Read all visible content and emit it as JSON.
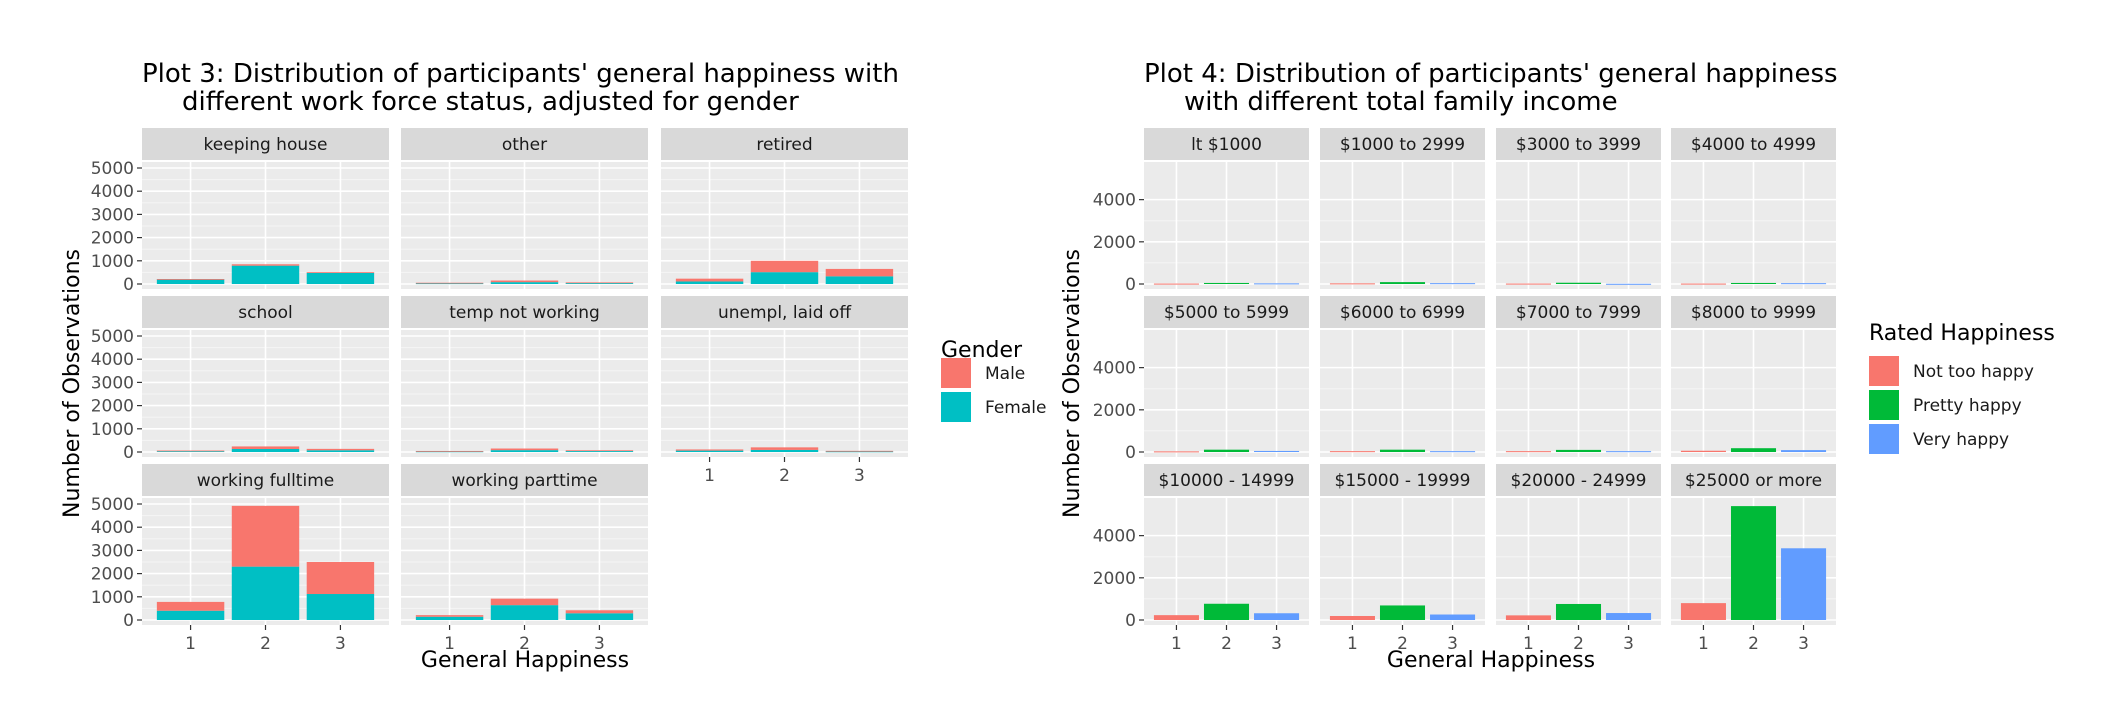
{
  "chart_data": [
    {
      "type": "bar",
      "stacked": true,
      "title_lines": [
        "Plot 3: Distribution of participants' general happiness with",
        "different work force status, adjusted for gender"
      ],
      "xlabel": "General Happiness",
      "ylabel": "Number of Observations",
      "categories": [
        "1",
        "2",
        "3"
      ],
      "ylim": [
        0,
        5000
      ],
      "yticks": [
        "0",
        "1000",
        "2000",
        "3000",
        "4000",
        "5000"
      ],
      "grid": true,
      "legend": {
        "title": "Gender",
        "placement": "right",
        "items": [
          {
            "label": "Male",
            "color": "#F8766D"
          },
          {
            "label": "Female",
            "color": "#00BFC4"
          }
        ]
      },
      "facets": [
        {
          "label": "keeping house",
          "series": [
            {
              "name": "Female",
              "values": [
                200,
                790,
                480
              ]
            },
            {
              "name": "Male",
              "values": [
                15,
                60,
                30
              ]
            }
          ]
        },
        {
          "label": "other",
          "series": [
            {
              "name": "Female",
              "values": [
                30,
                80,
                40
              ]
            },
            {
              "name": "Male",
              "values": [
                25,
                70,
                30
              ]
            }
          ]
        },
        {
          "label": "retired",
          "series": [
            {
              "name": "Female",
              "values": [
                110,
                510,
                330
              ]
            },
            {
              "name": "Male",
              "values": [
                120,
                490,
                320
              ]
            }
          ]
        },
        {
          "label": "school",
          "series": [
            {
              "name": "Female",
              "values": [
                35,
                130,
                75
              ]
            },
            {
              "name": "Male",
              "values": [
                30,
                110,
                60
              ]
            }
          ]
        },
        {
          "label": "temp not working",
          "series": [
            {
              "name": "Female",
              "values": [
                25,
                80,
                40
              ]
            },
            {
              "name": "Male",
              "values": [
                20,
                70,
                35
              ]
            }
          ]
        },
        {
          "label": "unempl, laid off",
          "series": [
            {
              "name": "Female",
              "values": [
                60,
                90,
                25
              ]
            },
            {
              "name": "Male",
              "values": [
                50,
                110,
                25
              ]
            }
          ]
        },
        {
          "label": "working fulltime",
          "series": [
            {
              "name": "Female",
              "values": [
                400,
                2300,
                1120
              ]
            },
            {
              "name": "Male",
              "values": [
                380,
                2620,
                1380
              ]
            }
          ]
        },
        {
          "label": "working parttime",
          "series": [
            {
              "name": "Female",
              "values": [
                140,
                640,
                290
              ]
            },
            {
              "name": "Male",
              "values": [
                70,
                280,
                130
              ]
            }
          ]
        }
      ]
    },
    {
      "type": "bar",
      "title_lines": [
        "Plot 4: Distribution of participants' general happiness",
        "with different total family income"
      ],
      "xlabel": "General Happiness",
      "ylabel": "Number of Observations",
      "categories": [
        "1",
        "2",
        "3"
      ],
      "ylim": [
        0,
        5500
      ],
      "yticks": [
        "0",
        "2000",
        "4000"
      ],
      "grid": true,
      "legend": {
        "title": "Rated Happiness",
        "placement": "right",
        "items": [
          {
            "label": "Not too happy",
            "color": "#F8766D"
          },
          {
            "label": "Pretty happy",
            "color": "#00BA38"
          },
          {
            "label": "Very happy",
            "color": "#619CFF"
          }
        ]
      },
      "facets": [
        {
          "label": "lt $1000",
          "values": [
            20,
            50,
            30
          ]
        },
        {
          "label": "$1000 to 2999",
          "values": [
            30,
            90,
            40
          ]
        },
        {
          "label": "$3000 to 3999",
          "values": [
            20,
            60,
            10
          ]
        },
        {
          "label": "$4000 to 4999",
          "values": [
            20,
            50,
            40
          ]
        },
        {
          "label": "$5000 to 5999",
          "values": [
            30,
            110,
            50
          ]
        },
        {
          "label": "$6000 to 6999",
          "values": [
            40,
            110,
            40
          ]
        },
        {
          "label": "$7000 to 7999",
          "values": [
            40,
            100,
            40
          ]
        },
        {
          "label": "$8000 to 9999",
          "values": [
            60,
            180,
            90
          ]
        },
        {
          "label": "$10000 - 14999",
          "values": [
            230,
            770,
            320
          ]
        },
        {
          "label": "$15000 - 19999",
          "values": [
            190,
            690,
            260
          ]
        },
        {
          "label": "$20000 - 24999",
          "values": [
            220,
            760,
            330
          ]
        },
        {
          "label": "$25000 or more",
          "values": [
            800,
            5400,
            3400
          ]
        }
      ]
    }
  ]
}
